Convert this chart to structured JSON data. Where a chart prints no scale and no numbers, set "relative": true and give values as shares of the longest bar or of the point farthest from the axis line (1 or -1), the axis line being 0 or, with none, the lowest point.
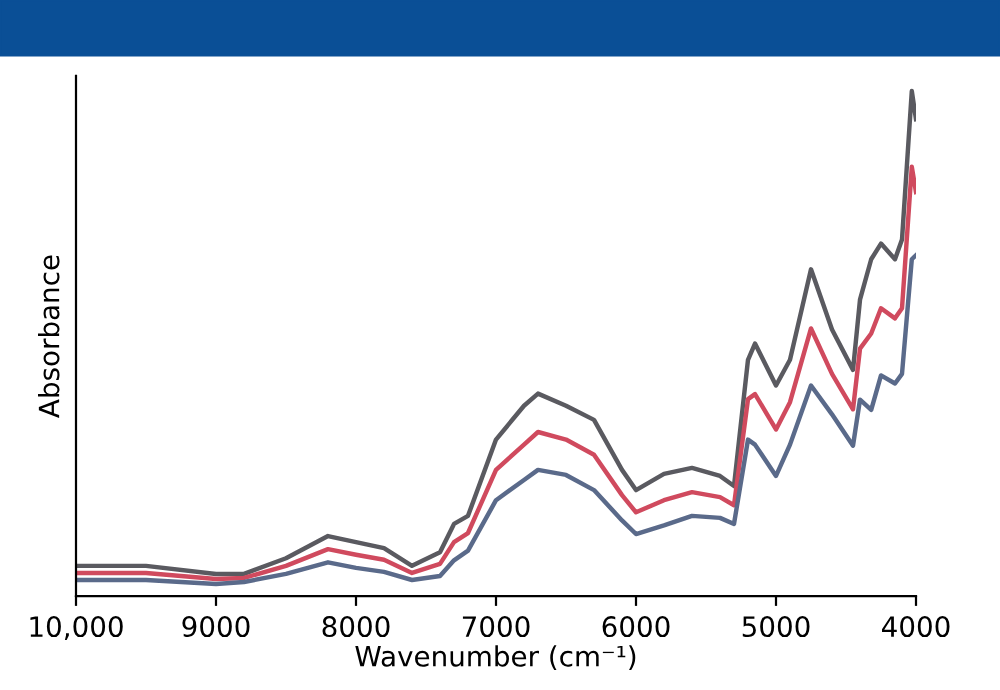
{
  "chart_data": {
    "type": "line",
    "xlabel": "Wavenumber (cm⁻¹)",
    "ylabel": "Absorbance",
    "relative": true,
    "x": [
      10000,
      9500,
      9000,
      8800,
      8500,
      8200,
      8000,
      7800,
      7600,
      7400,
      7300,
      7200,
      7000,
      6800,
      6700,
      6500,
      6300,
      6100,
      6000,
      5800,
      5600,
      5400,
      5300,
      5200,
      5150,
      5000,
      4900,
      4750,
      4600,
      4450,
      4400,
      4320,
      4250,
      4150,
      4100,
      4030,
      4000
    ],
    "xlim": [
      10000,
      4000
    ],
    "xticks": [
      {
        "value": 10000,
        "label": "10,000"
      },
      9000,
      8000,
      7000,
      6000,
      5000,
      4000
    ],
    "tick_labels": "x",
    "grid": false,
    "marker": "none",
    "line_style": "solid",
    "series": [
      {
        "color": "#5a5a60",
        "values": [
          0.06,
          0.06,
          0.044,
          0.044,
          0.075,
          0.119,
          0.107,
          0.095,
          0.06,
          0.087,
          0.143,
          0.159,
          0.31,
          0.377,
          0.401,
          0.377,
          0.349,
          0.25,
          0.21,
          0.242,
          0.254,
          0.238,
          0.218,
          0.468,
          0.5,
          0.417,
          0.468,
          0.647,
          0.528,
          0.448,
          0.587,
          0.667,
          0.698,
          0.667,
          0.706,
          1.0,
          0.944
        ]
      },
      {
        "color": "#d04a5e",
        "values": [
          0.046,
          0.046,
          0.034,
          0.036,
          0.06,
          0.093,
          0.082,
          0.072,
          0.046,
          0.064,
          0.107,
          0.125,
          0.25,
          0.3,
          0.325,
          0.31,
          0.28,
          0.2,
          0.166,
          0.19,
          0.206,
          0.196,
          0.18,
          0.39,
          0.4,
          0.33,
          0.384,
          0.53,
          0.44,
          0.37,
          0.49,
          0.52,
          0.57,
          0.55,
          0.57,
          0.85,
          0.8
        ]
      },
      {
        "color": "#5a6a8a",
        "values": [
          0.032,
          0.032,
          0.024,
          0.028,
          0.044,
          0.067,
          0.056,
          0.048,
          0.032,
          0.04,
          0.071,
          0.09,
          0.19,
          0.23,
          0.25,
          0.24,
          0.21,
          0.15,
          0.123,
          0.14,
          0.159,
          0.155,
          0.143,
          0.31,
          0.3,
          0.238,
          0.3,
          0.417,
          0.36,
          0.298,
          0.389,
          0.369,
          0.437,
          0.421,
          0.44,
          0.667,
          0.675
        ]
      }
    ]
  }
}
